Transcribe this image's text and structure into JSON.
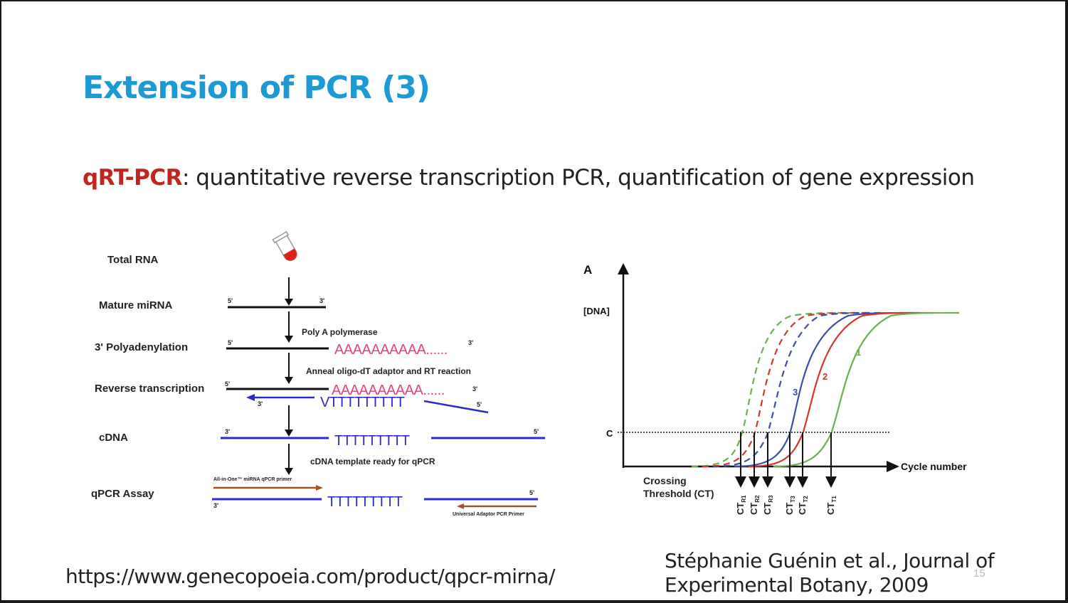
{
  "slide": {
    "title": "Extension of PCR (3)",
    "subtitle_acronym": "qRT-PCR",
    "subtitle_rest": ": quantitative reverse transcription PCR, quantification of gene expression",
    "source_url": "https://www.genecopoeia.com/product/qpcr-mirna/",
    "citation_line1": "Stéphanie Guénin et al., Journal of",
    "citation_line2": "Experimental Botany, 2009",
    "page_number": "15"
  },
  "workflow": {
    "steps": [
      "Total RNA",
      "Mature miRNA",
      "3' Polyadenylation",
      "Reverse transcription",
      "cDNA",
      "qPCR Assay"
    ],
    "poly_a_label": "Poly A polymerase",
    "anneal_label": "Anneal oligo-dT adaptor and RT reaction",
    "cdna_label": "cDNA template ready for  qPCR",
    "primer_top": "All-in-One™ miRNA qPCR primer",
    "primer_bottom": "Universal Adaptor PCR Primer",
    "poly_a_seq": "AAAAAAAAAA",
    "poly_a_tail": "......",
    "poly_t_seq": "TTTTTTTTT",
    "vt_seq": "VTTTTTTTTT",
    "end5": "5'",
    "end3": "3'"
  },
  "curves": {
    "panel_letter": "A",
    "ylabel": "[DNA]",
    "xlabel": "Cycle number",
    "threshold_label": "C",
    "crossing_label_1": "Crossing",
    "crossing_label_2": "Threshold (CT)",
    "curve_labels": [
      "1",
      "2",
      "3"
    ],
    "ct_main": "CT",
    "ct_subs": [
      "R1",
      "R2",
      "R3",
      "T3",
      "T2",
      "T1"
    ],
    "colors": {
      "green": "#6ab04c",
      "red": "#d9322c",
      "blue": "#3a4fa3",
      "pink": "#e0457b",
      "navy": "#2a2ad0",
      "brown": "#a0522d"
    }
  }
}
